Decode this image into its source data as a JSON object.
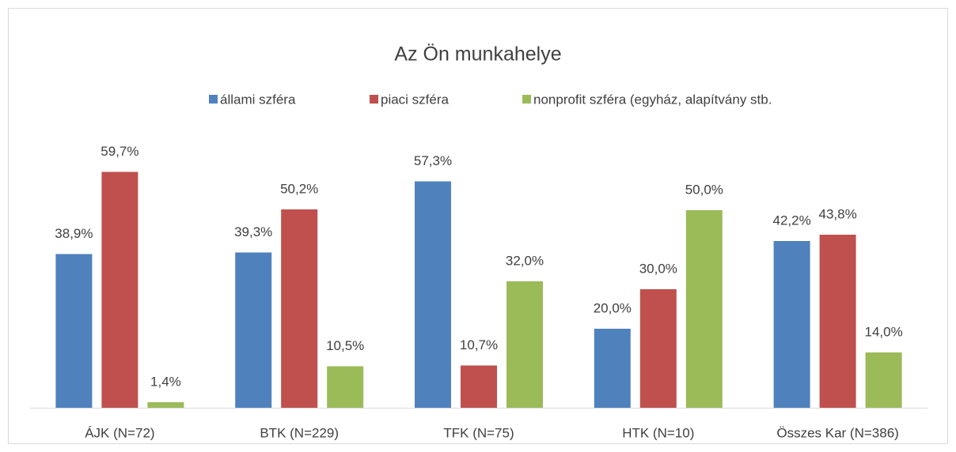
{
  "chart_data": {
    "type": "bar",
    "title": "Az Ön munkahelye",
    "categories": [
      "ÁJK (N=72)",
      "BTK (N=229)",
      "TFK (N=75)",
      "HTK (N=10)",
      "Összes Kar (N=386)"
    ],
    "series": [
      {
        "name": "állami szféra",
        "color": "#4f81bd",
        "values": [
          38.9,
          39.3,
          57.3,
          20.0,
          42.2
        ],
        "value_labels": [
          "38,9%",
          "39,3%",
          "57,3%",
          "20,0%",
          "42,2%"
        ]
      },
      {
        "name": "piaci szféra",
        "color": "#c0504d",
        "values": [
          59.7,
          50.2,
          10.7,
          30.0,
          43.8
        ],
        "value_labels": [
          "59,7%",
          "50,2%",
          "10,7%",
          "30,0%",
          "43,8%"
        ]
      },
      {
        "name": "nonprofit szféra (egyház, alapítvány stb.",
        "color": "#9bbb59",
        "values": [
          1.4,
          10.5,
          32.0,
          50.0,
          14.0
        ],
        "value_labels": [
          "1,4%",
          "10,5%",
          "32,0%",
          "50,0%",
          "14,0%"
        ]
      }
    ],
    "ylim": [
      0,
      70
    ]
  }
}
